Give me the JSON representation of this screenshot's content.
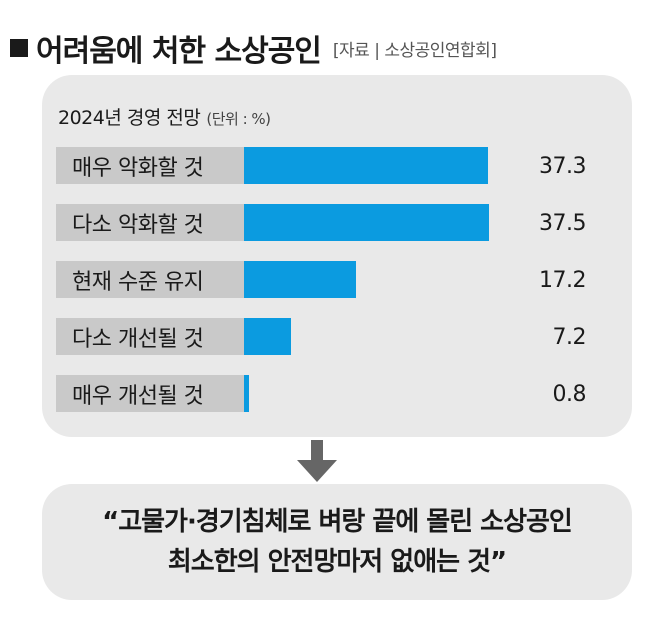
{
  "header": {
    "title": "어려움에 처한 소상공인",
    "source": "[자료 | 소상공인연합회]"
  },
  "panel": {
    "subtitle": "2024년 경영 전망",
    "unit": "(단위 : %)"
  },
  "chart_data": {
    "type": "bar",
    "orientation": "horizontal",
    "title": "2024년 경영 전망",
    "unit": "(단위 : %)",
    "categories": [
      "매우 악화할 것",
      "다소 악화할 것",
      "현재 수준 유지",
      "다소 개선될 것",
      "매우 개선될 것"
    ],
    "values": [
      37.3,
      37.5,
      17.2,
      7.2,
      0.8
    ],
    "value_labels": [
      "37.3",
      "37.5",
      "17.2",
      "7.2",
      "0.8"
    ],
    "bar_color": "#0b9be0",
    "label_box_color": "#c9c9c9",
    "xlim": [
      0,
      40
    ]
  },
  "arrow": {
    "icon": "down-arrow-icon",
    "color": "#666666"
  },
  "quote": {
    "line1": "“고물가·경기침체로 벼랑 끝에 몰린 소상공인",
    "line2": "최소한의 안전망마저 없애는 것”"
  }
}
